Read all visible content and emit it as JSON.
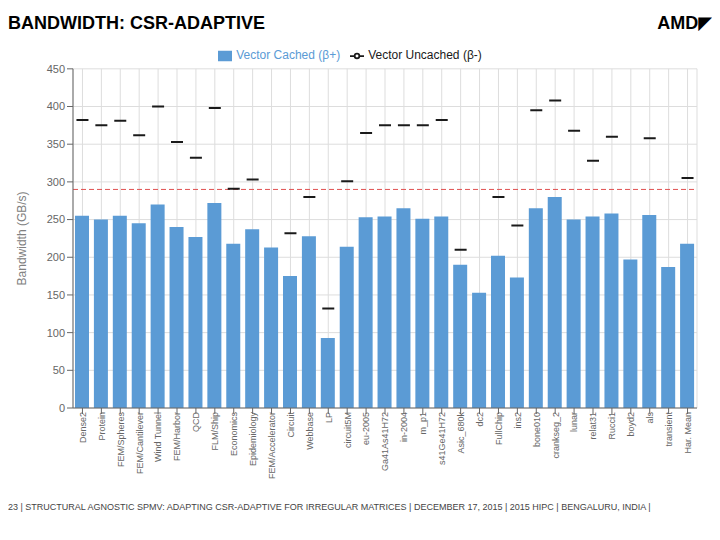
{
  "chart_data": {
    "type": "bar",
    "title": "BANDWIDTH: CSR-ADAPTIVE",
    "logo": "AMD◤",
    "footer": "23  |  STRUCTURAL AGNOSTIC SPMV: ADAPTING CSR-ADAPTIVE FOR IRREGULAR MATRICES  |  DECEMBER 17, 2015  |  2015 HIPC  |  BENGALURU, INDIA  |",
    "ylabel": "Bandwidth (GB/s)",
    "ylim": [
      0,
      450
    ],
    "yticks": [
      0,
      50,
      100,
      150,
      200,
      250,
      300,
      350,
      400,
      450
    ],
    "grid": true,
    "legend": "top",
    "categories": [
      "Dense2",
      "Protein",
      "FEM/Spheres",
      "FEM/Cantilever",
      "Wind Tunnel",
      "FEM/Harbor",
      "QCD",
      "FLM/Ship",
      "Economics",
      "Epidemiology",
      "FEM/Accelerator",
      "Circuit",
      "Webbase",
      "LP",
      "circuit5M",
      "eu-2005",
      "Ga41As41H72",
      "in-2004",
      "m_p1",
      "s41Ge41H72",
      "Asic_680k",
      "dc2",
      "FullChip",
      "ins2",
      "bone010",
      "crankseg_2",
      "lunar",
      "relat31",
      "Rucci1",
      "boyd2",
      "als",
      "transient",
      "Har. Mean"
    ],
    "series": [
      {
        "name": "Vector Cached (β+)",
        "type": "bar",
        "color": "#5B9BD5",
        "values": [
          255,
          250,
          255,
          245,
          270,
          240,
          227,
          272,
          218,
          237,
          213,
          175,
          228,
          93,
          214,
          253,
          254,
          265,
          251,
          254,
          190,
          153,
          202,
          173,
          265,
          280,
          250,
          254,
          258,
          197,
          256,
          187,
          218
        ]
      },
      {
        "name": "Vector Uncached (β-)",
        "type": "scatter",
        "marker": "dash",
        "color": "#1a1a1a",
        "values": [
          382,
          375,
          381,
          362,
          400,
          353,
          332,
          398,
          291,
          303,
          null,
          232,
          280,
          132,
          301,
          365,
          375,
          375,
          375,
          382,
          210,
          null,
          280,
          242,
          395,
          408,
          368,
          328,
          360,
          null,
          358,
          null,
          305
        ]
      }
    ],
    "reference_line": {
      "value": 290,
      "color": "#e05050",
      "line_style": "dashed"
    }
  }
}
